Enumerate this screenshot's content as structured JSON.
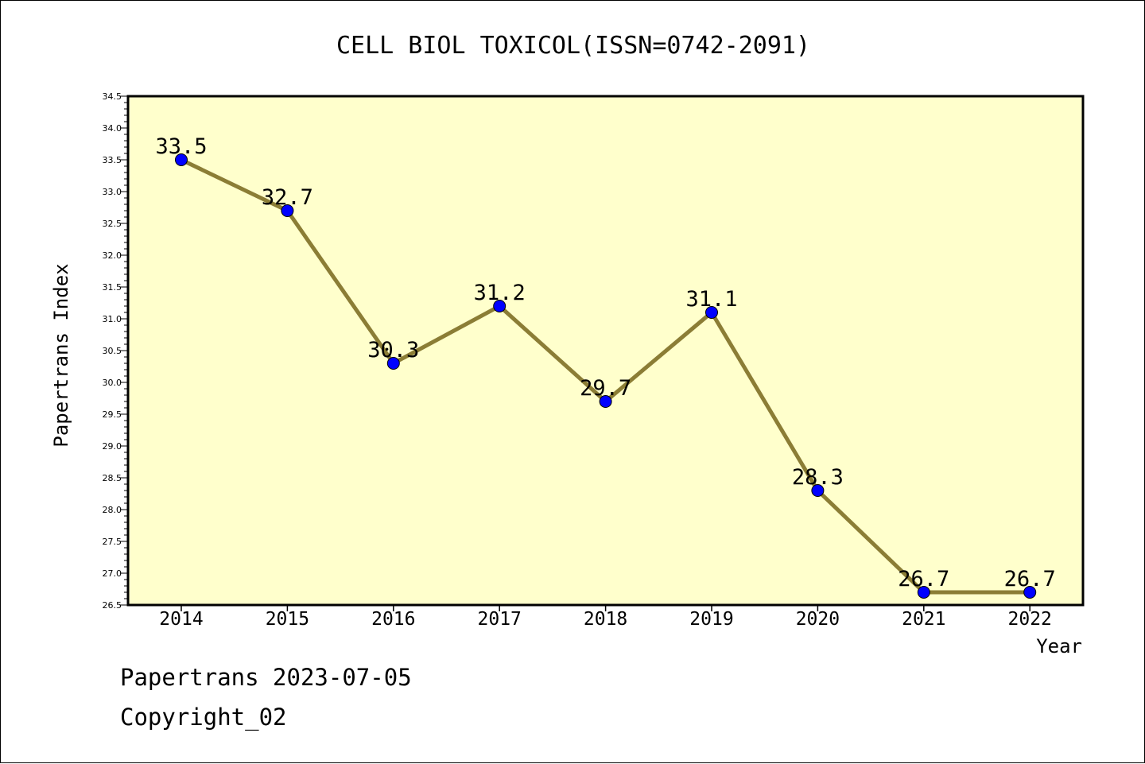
{
  "chart_data": {
    "type": "line",
    "title": "CELL BIOL TOXICOL(ISSN=0742-2091)",
    "xlabel": "Year",
    "ylabel": "Papertrans Index",
    "categories": [
      "2014",
      "2015",
      "2016",
      "2017",
      "2018",
      "2019",
      "2020",
      "2021",
      "2022"
    ],
    "series": [
      {
        "values": [
          33.5,
          32.7,
          30.3,
          31.2,
          29.7,
          31.1,
          28.3,
          26.7,
          26.7
        ]
      }
    ],
    "data_labels": [
      "33.5",
      "32.7",
      "30.3",
      "31.2",
      "29.7",
      "31.1",
      "28.3",
      "26.7",
      "26.7"
    ],
    "ylim": [
      26.5,
      34.5
    ],
    "y_major_ticks": [
      "26.5",
      "27.0",
      "27.5",
      "28.0",
      "28.5",
      "29.0",
      "29.5",
      "30.0",
      "30.5",
      "31.0",
      "31.5",
      "32.0",
      "32.5",
      "33.0",
      "33.5",
      "34.0",
      "34.5"
    ],
    "y_minor_step": 0.1,
    "grid": false,
    "legend": "none",
    "colors": {
      "plot_background": "#ffffcc",
      "line": "#8b7d35",
      "marker": "#0000ff",
      "axis": "#000000"
    }
  },
  "footer": {
    "stamp": "Papertrans 2023-07-05",
    "copyright": "Copyright_02"
  }
}
